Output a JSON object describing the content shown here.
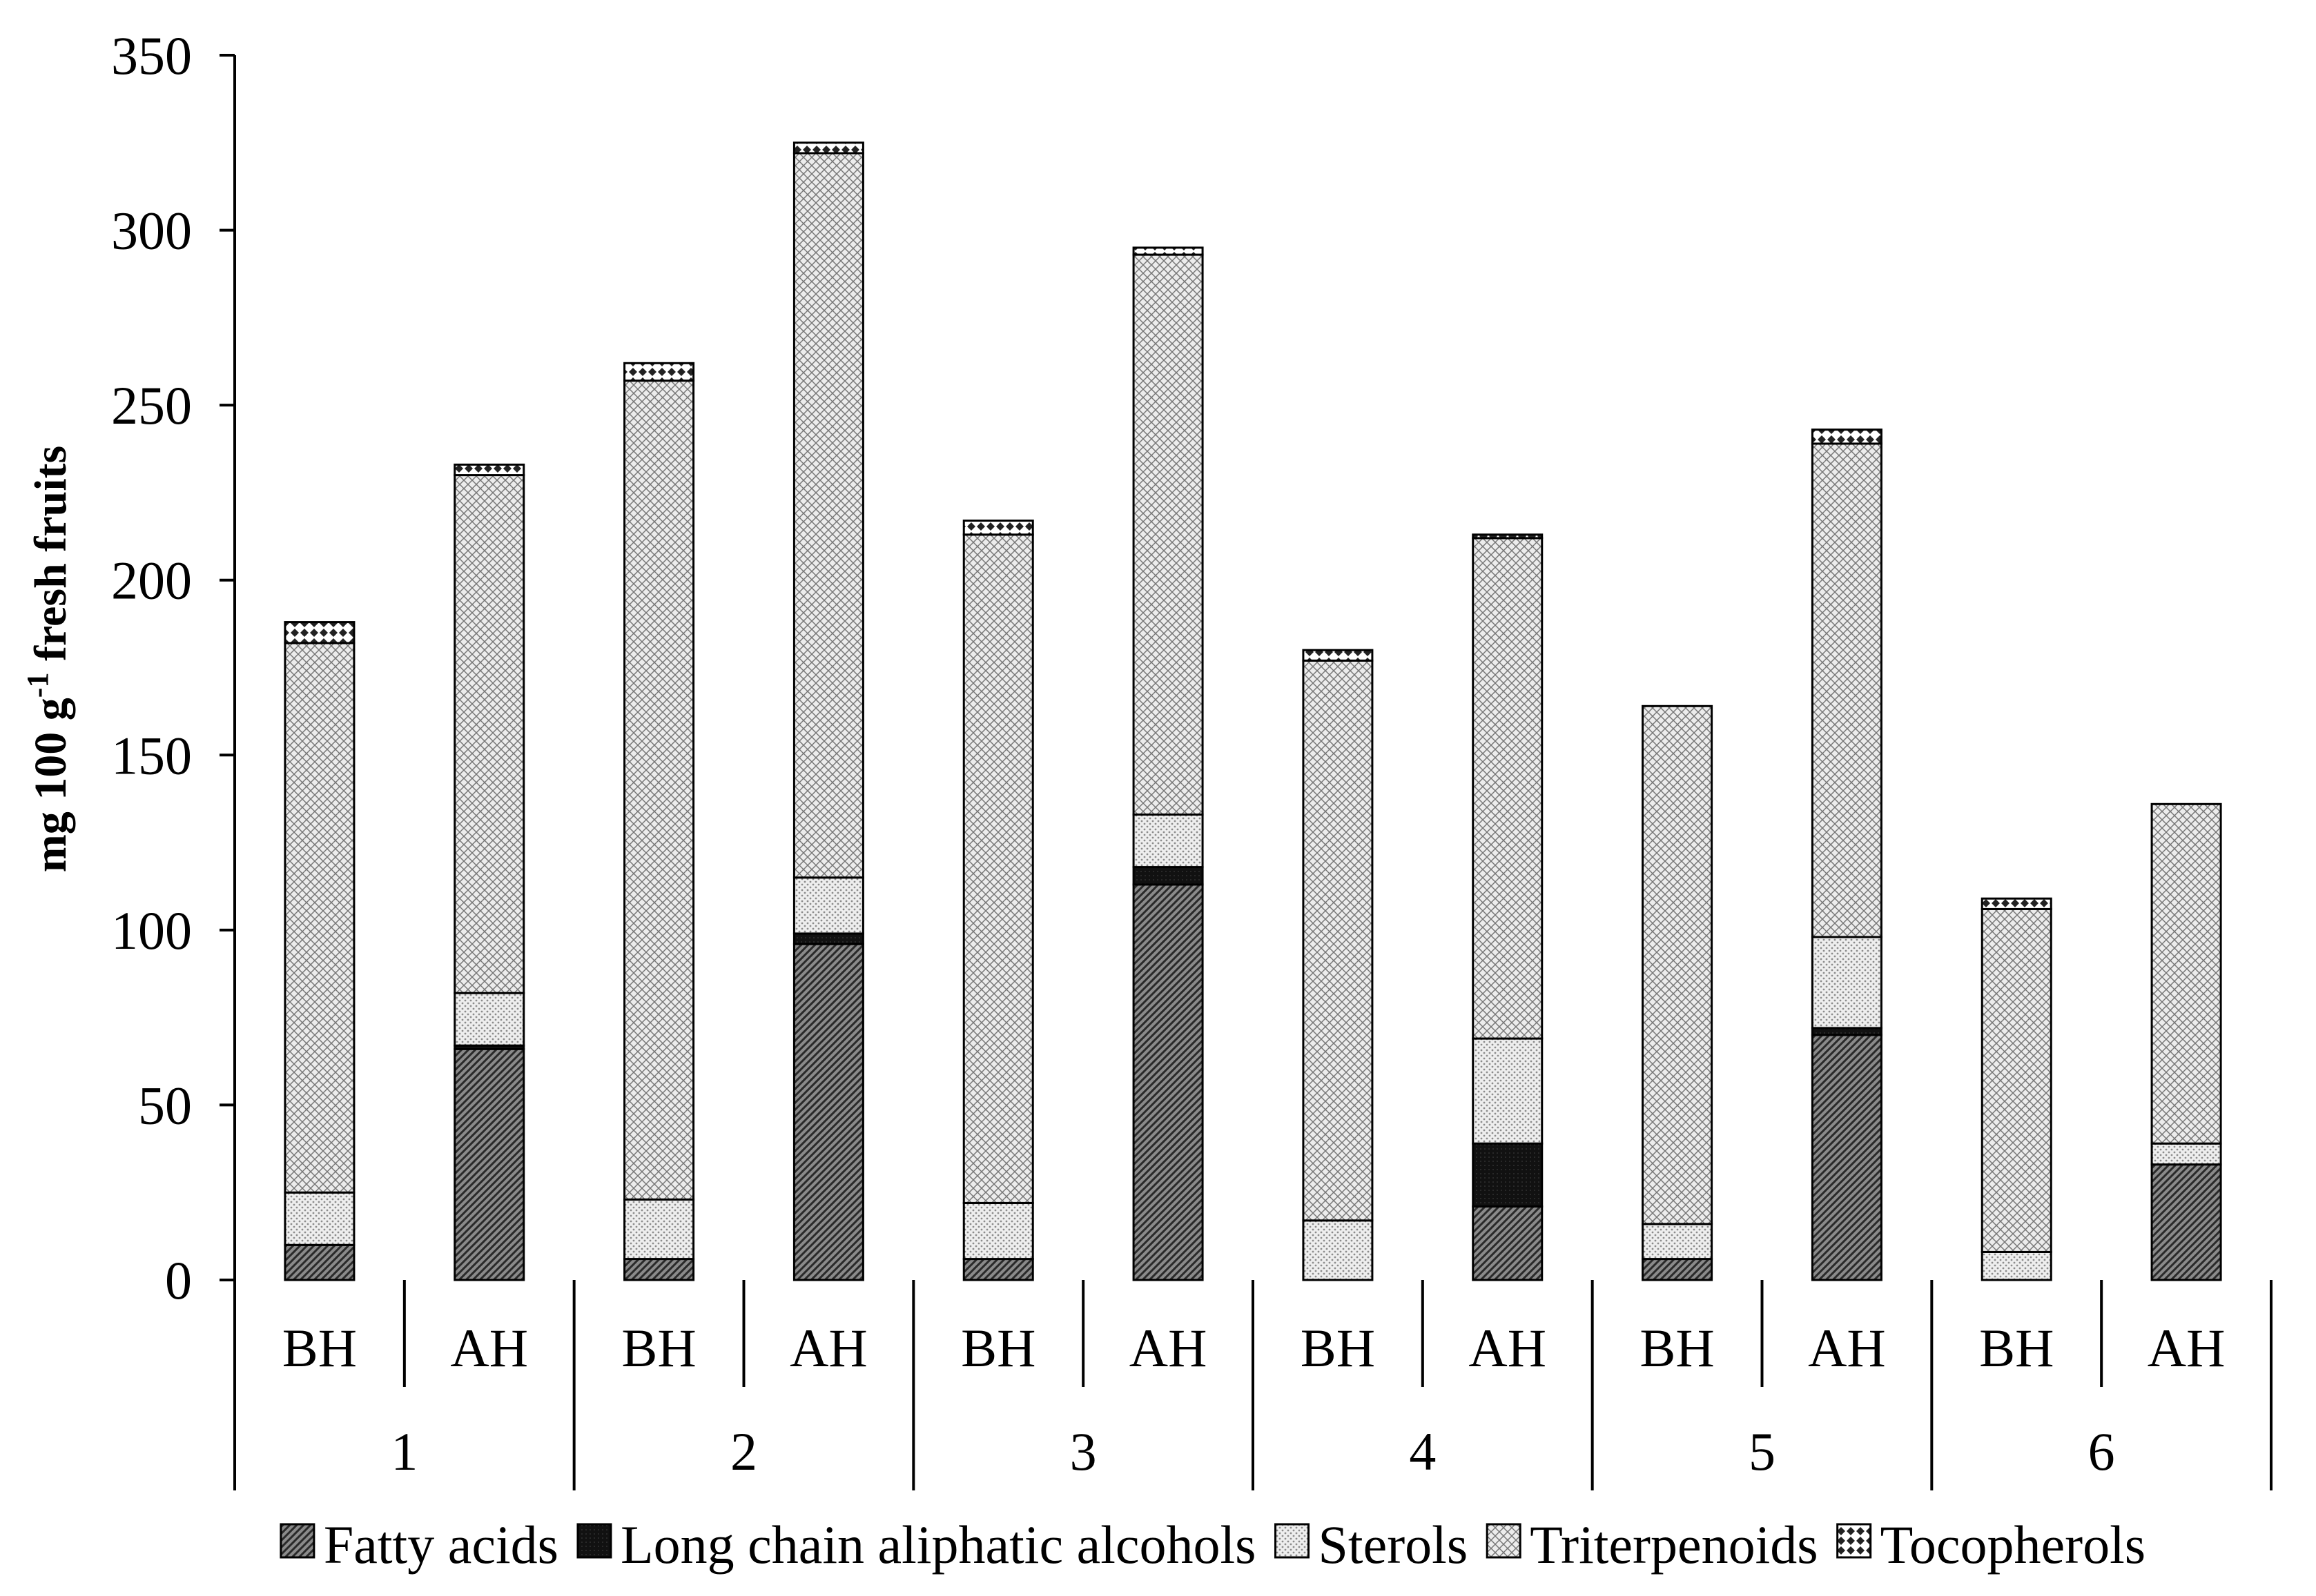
{
  "chart_data": {
    "type": "bar",
    "stacked": true,
    "ylabel": "mg 100 g",
    "ylabel_sup": "-1",
    "ylabel_suffix": " fresh fruits",
    "ylim": [
      0,
      350
    ],
    "yticks": [
      0,
      50,
      100,
      150,
      200,
      250,
      300,
      350
    ],
    "groups": [
      "1",
      "2",
      "3",
      "4",
      "5",
      "6"
    ],
    "categories": [
      "BH",
      "AH",
      "BH",
      "AH",
      "BH",
      "AH",
      "BH",
      "AH",
      "BH",
      "AH",
      "BH",
      "AH"
    ],
    "legend_position": "bottom",
    "grid": false,
    "series": [
      {
        "name": "Fatty acids",
        "pattern": "diag",
        "values": [
          10,
          66,
          6,
          96,
          6,
          113,
          0,
          21,
          6,
          70,
          0,
          33
        ]
      },
      {
        "name": "Long chain aliphatic alcohols",
        "pattern": "solid",
        "values": [
          0,
          1,
          0,
          3,
          0,
          5,
          0,
          18,
          0,
          2,
          0,
          0
        ]
      },
      {
        "name": "Sterols",
        "pattern": "dots",
        "values": [
          15,
          15,
          17,
          16,
          16,
          15,
          17,
          30,
          10,
          26,
          8,
          6
        ]
      },
      {
        "name": "Triterpenoids",
        "pattern": "cross",
        "values": [
          157,
          148,
          234,
          207,
          191,
          160,
          160,
          143,
          148,
          141,
          98,
          97
        ]
      },
      {
        "name": "Tocopherols",
        "pattern": "diamond",
        "values": [
          6,
          3,
          5,
          3,
          4,
          2,
          3,
          1,
          0,
          4,
          3,
          0
        ]
      }
    ]
  }
}
